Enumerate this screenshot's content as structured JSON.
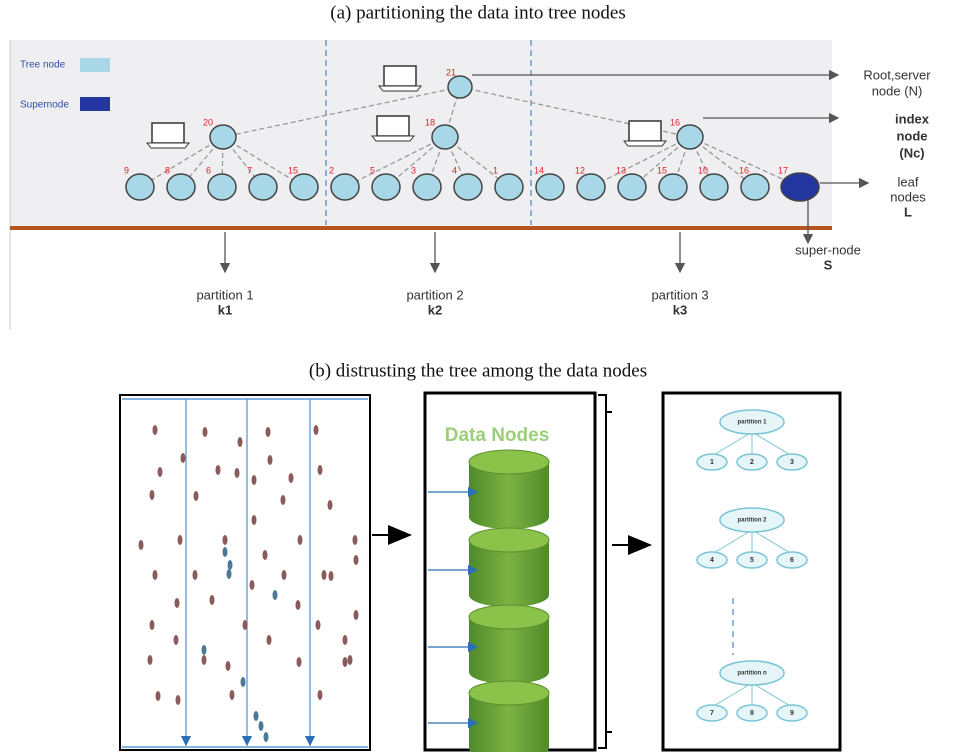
{
  "caption_a": "(a) partitioning the data into tree nodes",
  "legend": {
    "tree_node": "Tree node",
    "supernode": "Supernode"
  },
  "tree": {
    "root": "21",
    "index_nodes": [
      "20",
      "18",
      "16"
    ],
    "leaves": [
      "9",
      "8",
      "6",
      "7",
      "15",
      "2",
      "5",
      "3",
      "4",
      "1",
      "14",
      "12",
      "13",
      "15",
      "10",
      "16"
    ],
    "supernode": "17"
  },
  "annotations": {
    "root": [
      "Root,server",
      "node (N)"
    ],
    "index": [
      "index",
      "node",
      "(Nc)"
    ],
    "leaf": [
      "leaf",
      "nodes",
      "L"
    ],
    "super": [
      "super-node",
      "S"
    ]
  },
  "partitions": [
    {
      "name": "partition 1",
      "key": "k1"
    },
    {
      "name": "partition 2",
      "key": "k2"
    },
    {
      "name": "partition 3",
      "key": "k3"
    }
  ],
  "caption_b": "(b) distrusting the tree among the data nodes",
  "data_nodes_title": "Data Nodes",
  "partition_trees": [
    {
      "name": "partition 1",
      "children": [
        "1",
        "2",
        "3"
      ]
    },
    {
      "name": "partition 2",
      "children": [
        "4",
        "5",
        "6"
      ]
    },
    {
      "name": "partition n",
      "children": [
        "7",
        "8",
        "9"
      ]
    }
  ]
}
